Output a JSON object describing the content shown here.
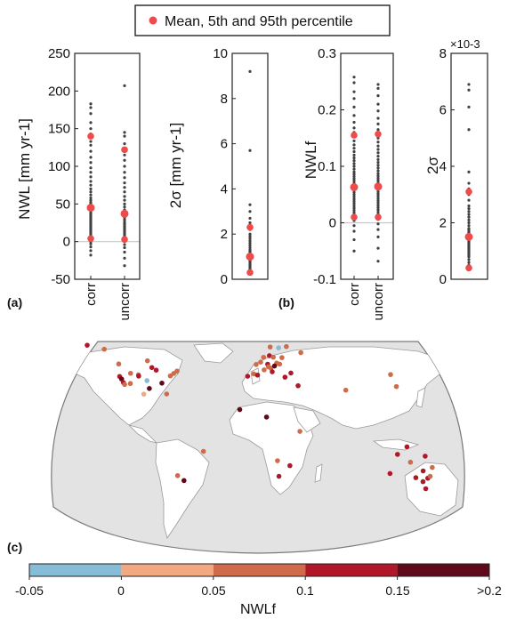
{
  "legend": {
    "label": "Mean, 5th and 95th percentile",
    "marker_color": "#ef4b4b"
  },
  "colors": {
    "dot": "#404040",
    "stat": "#ef4b4b",
    "zero_line": "#c8c8c8",
    "land": "#ffffff",
    "ocean": "#e3e3e3",
    "map_border": "#7a7a7a"
  },
  "panels": {
    "a": {
      "label": "(a)",
      "left_ylabel": "NWL [mm yr-1]",
      "right_ylabel": "2σ [mm yr-1]"
    },
    "b": {
      "label": "(b)",
      "left_ylabel": "NWLf",
      "right_ylabel": "2σ",
      "right_exponent": "×10-3"
    },
    "c": {
      "label": "(c)"
    }
  },
  "chart_data": [
    {
      "id": "a-left",
      "type": "scatter",
      "title": "",
      "ylabel": "NWL [mm yr-1]",
      "ylim": [
        -50,
        250
      ],
      "yticks": [
        -50,
        0,
        50,
        100,
        150,
        200,
        250
      ],
      "categories": [
        "corr",
        "uncorr"
      ],
      "zero_line": 0,
      "series": [
        {
          "category": "corr",
          "values": [
            183,
            178,
            170,
            158,
            150,
            143,
            138,
            133,
            128,
            120,
            112,
            105,
            98,
            92,
            86,
            80,
            75,
            70,
            66,
            62,
            58,
            55,
            52,
            50,
            48,
            46,
            44,
            42,
            40,
            38,
            36,
            34,
            32,
            30,
            28,
            26,
            24,
            22,
            20,
            18,
            16,
            14,
            12,
            10,
            8,
            6,
            4,
            2,
            0,
            -3,
            -7,
            -12,
            -18
          ],
          "mean": 45,
          "p5": 4,
          "p95": 140
        },
        {
          "category": "uncorr",
          "values": [
            207,
            145,
            140,
            130,
            122,
            115,
            108,
            100,
            92,
            85,
            78,
            72,
            66,
            60,
            55,
            50,
            46,
            42,
            38,
            35,
            32,
            29,
            26,
            24,
            22,
            20,
            18,
            16,
            14,
            12,
            10,
            8,
            6,
            4,
            2,
            0,
            -4,
            -8,
            -14,
            -22,
            -32
          ],
          "mean": 37,
          "p5": 3,
          "p95": 122
        }
      ]
    },
    {
      "id": "a-right",
      "type": "scatter",
      "title": "",
      "ylabel": "2σ [mm yr-1]",
      "ylim": [
        0,
        10
      ],
      "yticks": [
        0,
        2,
        4,
        6,
        8,
        10
      ],
      "categories": [
        ""
      ],
      "series": [
        {
          "category": "",
          "values": [
            9.2,
            5.7,
            3.3,
            3.0,
            2.7,
            2.5,
            2.3,
            2.2,
            2.0,
            1.9,
            1.8,
            1.7,
            1.6,
            1.5,
            1.4,
            1.3,
            1.25,
            1.2,
            1.15,
            1.1,
            1.05,
            1.0,
            0.95,
            0.9,
            0.85,
            0.8,
            0.75,
            0.7,
            0.65,
            0.6,
            0.55,
            0.5,
            0.45,
            0.4,
            0.35,
            0.3,
            0.25
          ],
          "mean": 1.0,
          "p5": 0.3,
          "p95": 2.3
        }
      ]
    },
    {
      "id": "b-left",
      "type": "scatter",
      "title": "",
      "ylabel": "NWLf",
      "ylim": [
        -0.1,
        0.3
      ],
      "yticks": [
        -0.1,
        0,
        0.1,
        0.2,
        0.3
      ],
      "categories": [
        "corr",
        "uncorr"
      ],
      "zero_line": 0,
      "series": [
        {
          "category": "corr",
          "values": [
            0.258,
            0.248,
            0.232,
            0.22,
            0.205,
            0.19,
            0.178,
            0.168,
            0.16,
            0.152,
            0.145,
            0.138,
            0.132,
            0.126,
            0.12,
            0.115,
            0.11,
            0.105,
            0.1,
            0.095,
            0.09,
            0.086,
            0.082,
            0.078,
            0.074,
            0.07,
            0.066,
            0.062,
            0.058,
            0.054,
            0.05,
            0.046,
            0.042,
            0.038,
            0.034,
            0.03,
            0.026,
            0.022,
            0.018,
            0.014,
            0.01,
            0.004,
            -0.005,
            -0.015,
            -0.03,
            -0.05
          ],
          "mean": 0.063,
          "p5": 0.01,
          "p95": 0.155
        },
        {
          "category": "uncorr",
          "values": [
            0.245,
            0.238,
            0.225,
            0.21,
            0.198,
            0.185,
            0.175,
            0.165,
            0.158,
            0.15,
            0.143,
            0.136,
            0.13,
            0.124,
            0.118,
            0.112,
            0.107,
            0.102,
            0.097,
            0.092,
            0.087,
            0.083,
            0.079,
            0.075,
            0.071,
            0.067,
            0.063,
            0.059,
            0.055,
            0.051,
            0.047,
            0.043,
            0.039,
            0.035,
            0.031,
            0.027,
            0.023,
            0.019,
            0.015,
            0.011,
            0.006,
            -0.002,
            -0.012,
            -0.025,
            -0.045,
            -0.068
          ],
          "mean": 0.064,
          "p5": 0.01,
          "p95": 0.157
        }
      ]
    },
    {
      "id": "b-right",
      "type": "scatter",
      "title": "",
      "ylabel": "2σ",
      "ylim": [
        0,
        8
      ],
      "yticks": [
        0,
        2,
        4,
        6,
        8
      ],
      "exponent": "×10-3",
      "categories": [
        ""
      ],
      "series": [
        {
          "category": "",
          "values": [
            6.9,
            6.7,
            6.1,
            5.3,
            3.8,
            3.4,
            3.2,
            3.0,
            2.8,
            2.6,
            2.5,
            2.4,
            2.3,
            2.2,
            2.1,
            2.0,
            1.9,
            1.8,
            1.75,
            1.7,
            1.65,
            1.6,
            1.55,
            1.5,
            1.45,
            1.4,
            1.35,
            1.3,
            1.25,
            1.2,
            1.15,
            1.1,
            1.05,
            1.0,
            0.95,
            0.9,
            0.85,
            0.8,
            0.7,
            0.6,
            0.5
          ],
          "mean": 1.5,
          "p5": 0.4,
          "p95": 3.1
        }
      ]
    },
    {
      "id": "c-map",
      "type": "scatter",
      "title": "",
      "colorbar": {
        "label": "NWLf",
        "ticks": [
          "-0.05",
          "0",
          "0.05",
          "0.1",
          "0.15",
          ">0.2"
        ],
        "bins": [
          {
            "from": -0.05,
            "to": 0,
            "color": "#86bcd6"
          },
          {
            "from": 0,
            "to": 0.05,
            "color": "#f2a981"
          },
          {
            "from": 0.05,
            "to": 0.1,
            "color": "#cf6a4a"
          },
          {
            "from": 0.1,
            "to": 0.15,
            "color": "#b0182a"
          },
          {
            "from": 0.15,
            "to": 0.2,
            "color": "#5e0a1a"
          }
        ]
      },
      "stations": [
        {
          "lon": -122.3,
          "lat": 47.6,
          "value": 0.06
        },
        {
          "lon": -121.5,
          "lat": 38.5,
          "value": 0.12
        },
        {
          "lon": -119.8,
          "lat": 36.7,
          "value": 0.18
        },
        {
          "lon": -118.2,
          "lat": 34.1,
          "value": 0.13
        },
        {
          "lon": -117.1,
          "lat": 32.7,
          "value": 0.08
        },
        {
          "lon": -111.9,
          "lat": 40.8,
          "value": 0.07
        },
        {
          "lon": -105.0,
          "lat": 39.7,
          "value": 0.08
        },
        {
          "lon": -104.8,
          "lat": 38.8,
          "value": 0.11
        },
        {
          "lon": -112.1,
          "lat": 33.4,
          "value": 0.05
        },
        {
          "lon": -97.5,
          "lat": 35.5,
          "value": -0.02
        },
        {
          "lon": -95.4,
          "lat": 29.8,
          "value": 0.16
        },
        {
          "lon": -93.2,
          "lat": 45.0,
          "value": 0.13
        },
        {
          "lon": -89.4,
          "lat": 43.1,
          "value": 0.12
        },
        {
          "lon": -84.4,
          "lat": 33.7,
          "value": 0.17
        },
        {
          "lon": -80.2,
          "lat": 25.8,
          "value": 0.06
        },
        {
          "lon": -77.0,
          "lat": 38.9,
          "value": 0.09
        },
        {
          "lon": -74.0,
          "lat": 40.7,
          "value": 0.06
        },
        {
          "lon": -71.1,
          "lat": 42.4,
          "value": 0.05
        },
        {
          "lon": -97.1,
          "lat": 49.9,
          "value": 0.07
        },
        {
          "lon": -135.0,
          "lat": 58.3,
          "value": 0.08
        },
        {
          "lon": -150.0,
          "lat": 61.2,
          "value": 0.11
        },
        {
          "lon": -100.3,
          "lat": 25.7,
          "value": 0.04
        },
        {
          "lon": -9.1,
          "lat": 38.7,
          "value": 0.12
        },
        {
          "lon": -3.7,
          "lat": 40.4,
          "value": 0.09
        },
        {
          "lon": 2.3,
          "lat": 48.9,
          "value": 0.07
        },
        {
          "lon": 4.9,
          "lat": 52.4,
          "value": 0.06
        },
        {
          "lon": 10.0,
          "lat": 53.6,
          "value": 0.11
        },
        {
          "lon": 13.4,
          "lat": 52.5,
          "value": 0.08
        },
        {
          "lon": 8.5,
          "lat": 47.4,
          "value": 0.12
        },
        {
          "lon": 11.4,
          "lat": 44.5,
          "value": 0.07
        },
        {
          "lon": 12.5,
          "lat": 41.9,
          "value": 0.12
        },
        {
          "lon": 16.4,
          "lat": 48.2,
          "value": 0.09
        },
        {
          "lon": 19.0,
          "lat": 47.5,
          "value": 0.05
        },
        {
          "lon": 14.5,
          "lat": 46.1,
          "value": 0.17
        },
        {
          "lon": 21.0,
          "lat": 52.2,
          "value": 0.06
        },
        {
          "lon": 18.1,
          "lat": 59.3,
          "value": -0.03
        },
        {
          "lon": 10.7,
          "lat": 59.9,
          "value": 0.06
        },
        {
          "lon": 24.9,
          "lat": 60.2,
          "value": 0.07
        },
        {
          "lon": 23.7,
          "lat": 38.0,
          "value": 0.12
        },
        {
          "lon": 28.9,
          "lat": 41.0,
          "value": 0.13
        },
        {
          "lon": -1.6,
          "lat": 47.2,
          "value": 0.05
        },
        {
          "lon": -0.4,
          "lat": 39.5,
          "value": 0.11
        },
        {
          "lon": 5.4,
          "lat": 43.3,
          "value": 0.09
        },
        {
          "lon": 9.2,
          "lat": 45.5,
          "value": 0.05
        },
        {
          "lon": 37.6,
          "lat": 55.8,
          "value": 0.05
        },
        {
          "lon": 35.2,
          "lat": 31.8,
          "value": 0.1
        },
        {
          "lon": 77.1,
          "lat": 28.6,
          "value": 0.06
        },
        {
          "lon": 116.4,
          "lat": 39.9,
          "value": 0.05
        },
        {
          "lon": 121.5,
          "lat": 31.2,
          "value": 0.06
        },
        {
          "lon": -16.0,
          "lat": 14.5,
          "value": 0.16
        },
        {
          "lon": 7.5,
          "lat": 9.1,
          "value": 0.16
        },
        {
          "lon": -47.9,
          "lat": -15.8,
          "value": 0.08
        },
        {
          "lon": -70.6,
          "lat": -33.4,
          "value": 0.06
        },
        {
          "lon": -65.0,
          "lat": -37.0,
          "value": 0.19
        },
        {
          "lon": 36.8,
          "lat": -1.3,
          "value": 0.08
        },
        {
          "lon": 17.1,
          "lat": -22.6,
          "value": 0.06
        },
        {
          "lon": 28.0,
          "lat": -26.2,
          "value": 0.11
        },
        {
          "lon": 18.4,
          "lat": -33.9,
          "value": 0.1
        },
        {
          "lon": 115.9,
          "lat": -31.9,
          "value": 0.11
        },
        {
          "lon": 130.8,
          "lat": -12.5,
          "value": 0.12
        },
        {
          "lon": 138.6,
          "lat": -34.9,
          "value": 0.13
        },
        {
          "lon": 144.9,
          "lat": -37.8,
          "value": 0.14
        },
        {
          "lon": 149.1,
          "lat": -35.3,
          "value": 0.12
        },
        {
          "lon": 151.2,
          "lat": -33.9,
          "value": 0.05
        },
        {
          "lon": 153.0,
          "lat": -27.5,
          "value": 0.08
        },
        {
          "lon": 147.3,
          "lat": -42.9,
          "value": 0.11
        },
        {
          "lon": 146.8,
          "lat": -19.3,
          "value": 0.1
        },
        {
          "lon": 122.5,
          "lat": -18.0,
          "value": 0.13
        },
        {
          "lon": 133.9,
          "lat": -23.7,
          "value": 0.07
        },
        {
          "lon": 145.0,
          "lat": -30.0,
          "value": 0.12
        }
      ]
    }
  ]
}
